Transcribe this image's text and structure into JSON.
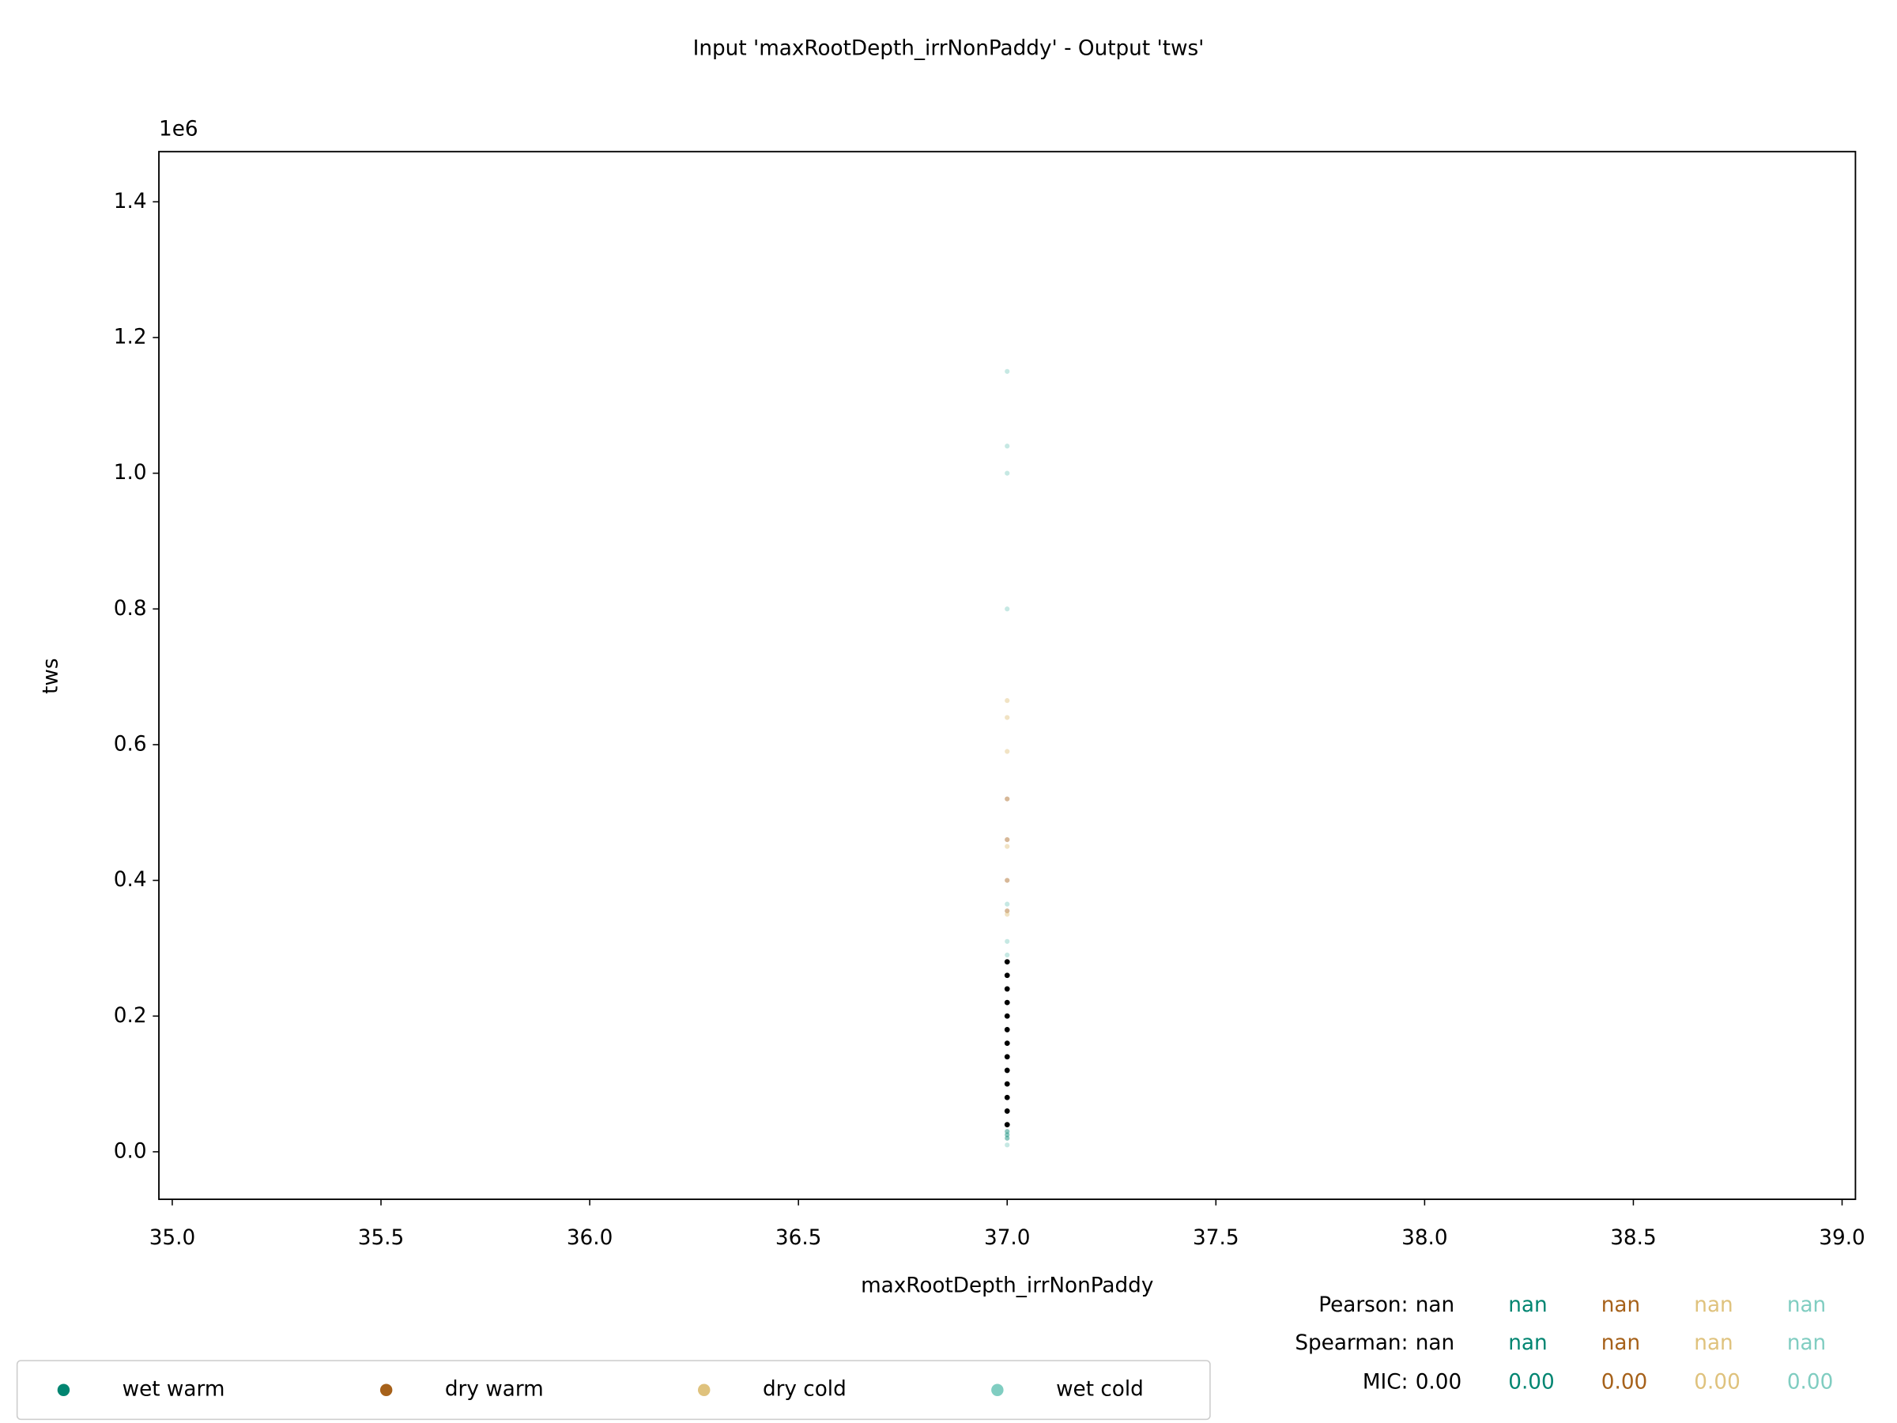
{
  "chart_data": {
    "type": "scatter",
    "title": "Input 'maxRootDepth_irrNonPaddy' - Output 'tws'",
    "x_label": "maxRootDepth_irrNonPaddy",
    "y_label": "tws",
    "y_offset_label": "1e6",
    "xlim": [
      34.968,
      39.032
    ],
    "ylim": [
      -0.07,
      1.474
    ],
    "xticks": [
      {
        "value": 35.0,
        "label": "35.0"
      },
      35.5,
      {
        "value": 36.0,
        "label": "36.0"
      },
      36.5,
      {
        "value": 37.0,
        "label": "37.0"
      },
      37.5,
      {
        "value": 38.0,
        "label": "38.0"
      },
      38.5,
      {
        "value": 39.0,
        "label": "39.0"
      }
    ],
    "yticks": [
      {
        "value": 0,
        "label": "0.0"
      },
      0.2,
      0.4,
      0.6,
      0.8,
      {
        "value": 1,
        "label": "1.0"
      },
      1.2,
      1.4
    ],
    "legend": "lower left",
    "series": [
      {
        "name": "wet warm",
        "color": "#018571",
        "x": [
          37,
          37,
          37
        ],
        "values": [
          0.02,
          0.025,
          0.03
        ]
      },
      {
        "name": "dry warm",
        "color": "#a6611a",
        "x": [
          37,
          37,
          37,
          37
        ],
        "values": [
          0.52,
          0.46,
          0.4,
          0.355
        ]
      },
      {
        "name": "dry cold",
        "color": "#dfc27d",
        "x": [
          37,
          37,
          37,
          37,
          37
        ],
        "values": [
          0.665,
          0.64,
          0.59,
          0.45,
          0.35
        ]
      },
      {
        "name": "wet cold",
        "color": "#80cdc1",
        "x": [
          37,
          37,
          37,
          37,
          37,
          37,
          37,
          37
        ],
        "values": [
          0.01,
          0.29,
          0.31,
          0.365,
          0.8,
          1.0,
          1.04,
          1.15
        ]
      },
      {
        "color": "#000000",
        "x": [
          37,
          37,
          37,
          37,
          37,
          37,
          37,
          37,
          37,
          37,
          37,
          37,
          37
        ],
        "values": [
          0.04,
          0.06,
          0.08,
          0.1,
          0.12,
          0.14,
          0.16,
          0.18,
          0.2,
          0.22,
          0.24,
          0.26,
          0.28
        ]
      }
    ],
    "stats": [
      {
        "label": "Pearson:",
        "values": [
          "nan",
          "nan",
          "nan",
          "nan",
          "nan"
        ]
      },
      {
        "label": "Spearman:",
        "values": [
          "nan",
          "nan",
          "nan",
          "nan",
          "nan"
        ]
      },
      {
        "label": "MIC:",
        "values": [
          "0.00",
          "0.00",
          "0.00",
          "0.00",
          "0.00"
        ]
      }
    ]
  }
}
